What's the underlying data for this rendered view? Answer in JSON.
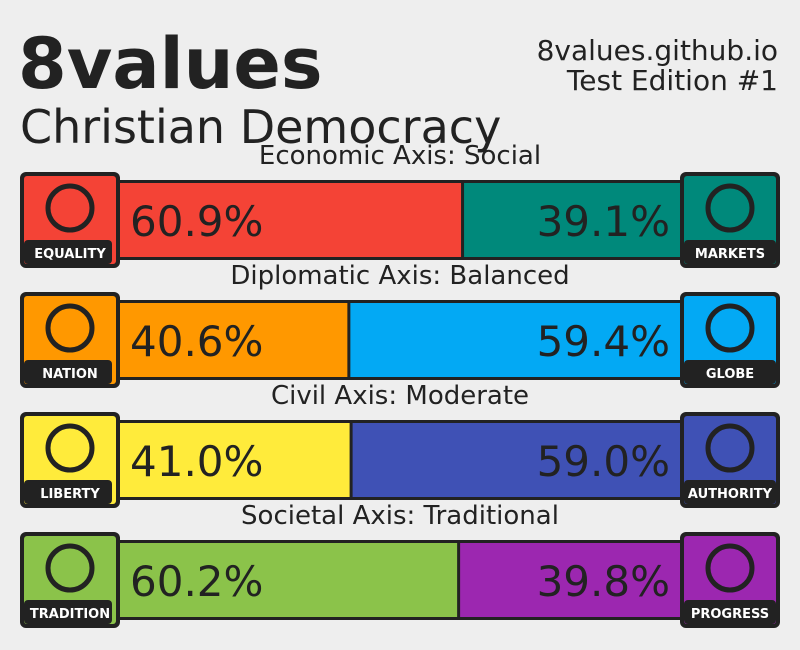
{
  "header": {
    "title": "8values",
    "ideology": "Christian Democracy",
    "site": "8values.github.io",
    "edition": "Test Edition #1"
  },
  "axes": [
    {
      "title": "Economic Axis: Social",
      "left": {
        "label": "EQUALITY",
        "value": 60.9,
        "value_label": "60.9%",
        "color": "#f44336"
      },
      "right": {
        "label": "MARKETS",
        "value": 39.1,
        "value_label": "39.1%",
        "color": "#00897b"
      }
    },
    {
      "title": "Diplomatic Axis: Balanced",
      "left": {
        "label": "NATION",
        "value": 40.6,
        "value_label": "40.6%",
        "color": "#ff9800"
      },
      "right": {
        "label": "GLOBE",
        "value": 59.4,
        "value_label": "59.4%",
        "color": "#03a9f4"
      }
    },
    {
      "title": "Civil Axis: Moderate",
      "left": {
        "label": "LIBERTY",
        "value": 41.0,
        "value_label": "41.0%",
        "color": "#ffeb3b"
      },
      "right": {
        "label": "AUTHORITY",
        "value": 59.0,
        "value_label": "59.0%",
        "color": "#3f51b5"
      }
    },
    {
      "title": "Societal Axis: Traditional",
      "left": {
        "label": "TRADITION",
        "value": 60.2,
        "value_label": "60.2%",
        "color": "#8bc34a"
      },
      "right": {
        "label": "PROGRESS",
        "value": 39.8,
        "value_label": "39.8%",
        "color": "#9c27b0"
      }
    }
  ]
}
